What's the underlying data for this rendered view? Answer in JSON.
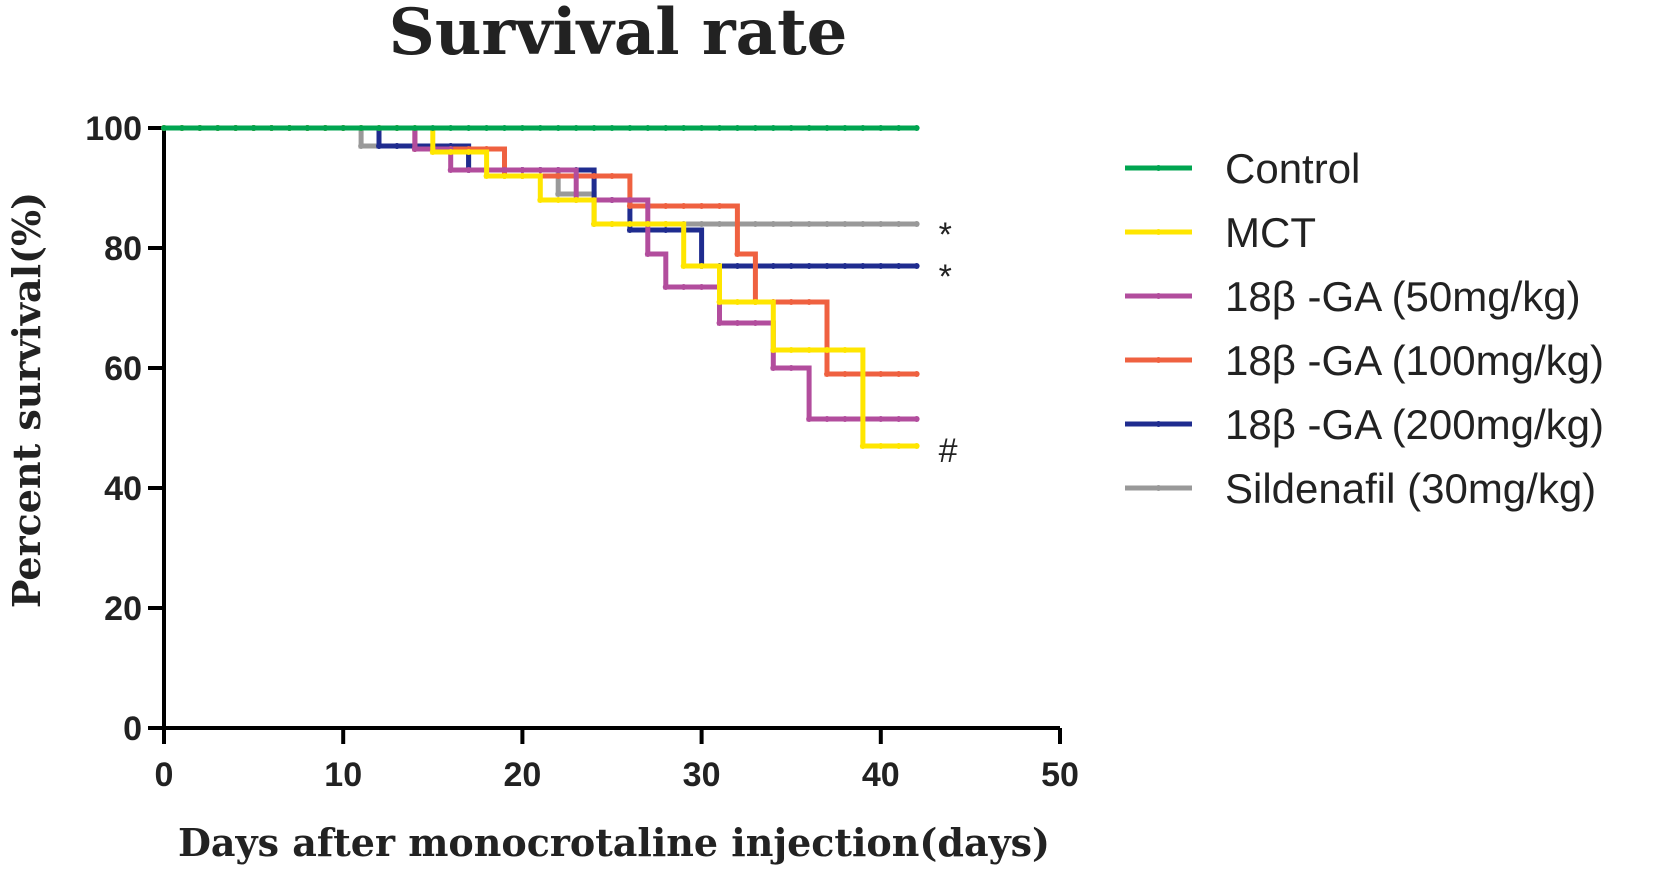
{
  "chart_data": {
    "type": "line",
    "title": "Survival rate",
    "xlabel": "Days after monocrotaline injection(days)",
    "ylabel": "Percent survival(%)",
    "xlim": [
      0,
      50
    ],
    "ylim": [
      0,
      100
    ],
    "xticks": [
      0,
      10,
      20,
      30,
      40,
      50
    ],
    "yticks": [
      0,
      20,
      40,
      60,
      80,
      100
    ],
    "grid": false,
    "legend_position": "right",
    "series": [
      {
        "name": "Control",
        "color": "#00a550",
        "steps": [
          [
            0,
            100
          ],
          [
            42,
            100
          ]
        ]
      },
      {
        "name": "MCT",
        "color": "#ffe600",
        "steps": [
          [
            0,
            100
          ],
          [
            15,
            100
          ],
          [
            15,
            96
          ],
          [
            18,
            96
          ],
          [
            18,
            92
          ],
          [
            21,
            92
          ],
          [
            21,
            88
          ],
          [
            24,
            88
          ],
          [
            24,
            84
          ],
          [
            29,
            84
          ],
          [
            29,
            77
          ],
          [
            31,
            77
          ],
          [
            31,
            71
          ],
          [
            34,
            71
          ],
          [
            34,
            63
          ],
          [
            39,
            63
          ],
          [
            39,
            47
          ],
          [
            42,
            47
          ]
        ]
      },
      {
        "name": "18β -GA  (50mg/kg)",
        "color": "#b24d9d",
        "steps": [
          [
            0,
            100
          ],
          [
            14,
            100
          ],
          [
            14,
            96.5
          ],
          [
            16,
            96.5
          ],
          [
            16,
            93
          ],
          [
            23,
            93
          ],
          [
            23,
            88
          ],
          [
            27,
            88
          ],
          [
            27,
            79
          ],
          [
            28,
            79
          ],
          [
            28,
            73.5
          ],
          [
            31,
            73.5
          ],
          [
            31,
            67.5
          ],
          [
            34,
            67.5
          ],
          [
            34,
            60
          ],
          [
            36,
            60
          ],
          [
            36,
            51.5
          ],
          [
            42,
            51.5
          ]
        ]
      },
      {
        "name": "18β -GA (100mg/kg)",
        "color": "#ef6140",
        "steps": [
          [
            0,
            100
          ],
          [
            14,
            100
          ],
          [
            14,
            96.5
          ],
          [
            19,
            96.5
          ],
          [
            19,
            92
          ],
          [
            26,
            92
          ],
          [
            26,
            87
          ],
          [
            32,
            87
          ],
          [
            32,
            79
          ],
          [
            33,
            79
          ],
          [
            33,
            71
          ],
          [
            37,
            71
          ],
          [
            37,
            59
          ],
          [
            42,
            59
          ]
        ]
      },
      {
        "name": "18β -GA  (200mg/kg)",
        "color": "#1f2c8f",
        "steps": [
          [
            0,
            100
          ],
          [
            12,
            100
          ],
          [
            12,
            97
          ],
          [
            17,
            97
          ],
          [
            17,
            93
          ],
          [
            24,
            93
          ],
          [
            24,
            88
          ],
          [
            26,
            88
          ],
          [
            26,
            83
          ],
          [
            30,
            83
          ],
          [
            30,
            77
          ],
          [
            42,
            77
          ]
        ]
      },
      {
        "name": "Sildenafil (30mg/kg)",
        "color": "#999999",
        "steps": [
          [
            0,
            100
          ],
          [
            11,
            100
          ],
          [
            11,
            97
          ],
          [
            17,
            97
          ],
          [
            17,
            93
          ],
          [
            22,
            93
          ],
          [
            22,
            89
          ],
          [
            24,
            89
          ],
          [
            24,
            84
          ],
          [
            42,
            84
          ]
        ]
      }
    ],
    "annotations": [
      {
        "text": "*",
        "series": "Sildenafil (30mg/kg)"
      },
      {
        "text": "*",
        "series": "18β -GA  (200mg/kg)"
      },
      {
        "text": "#",
        "series": "MCT"
      }
    ]
  }
}
